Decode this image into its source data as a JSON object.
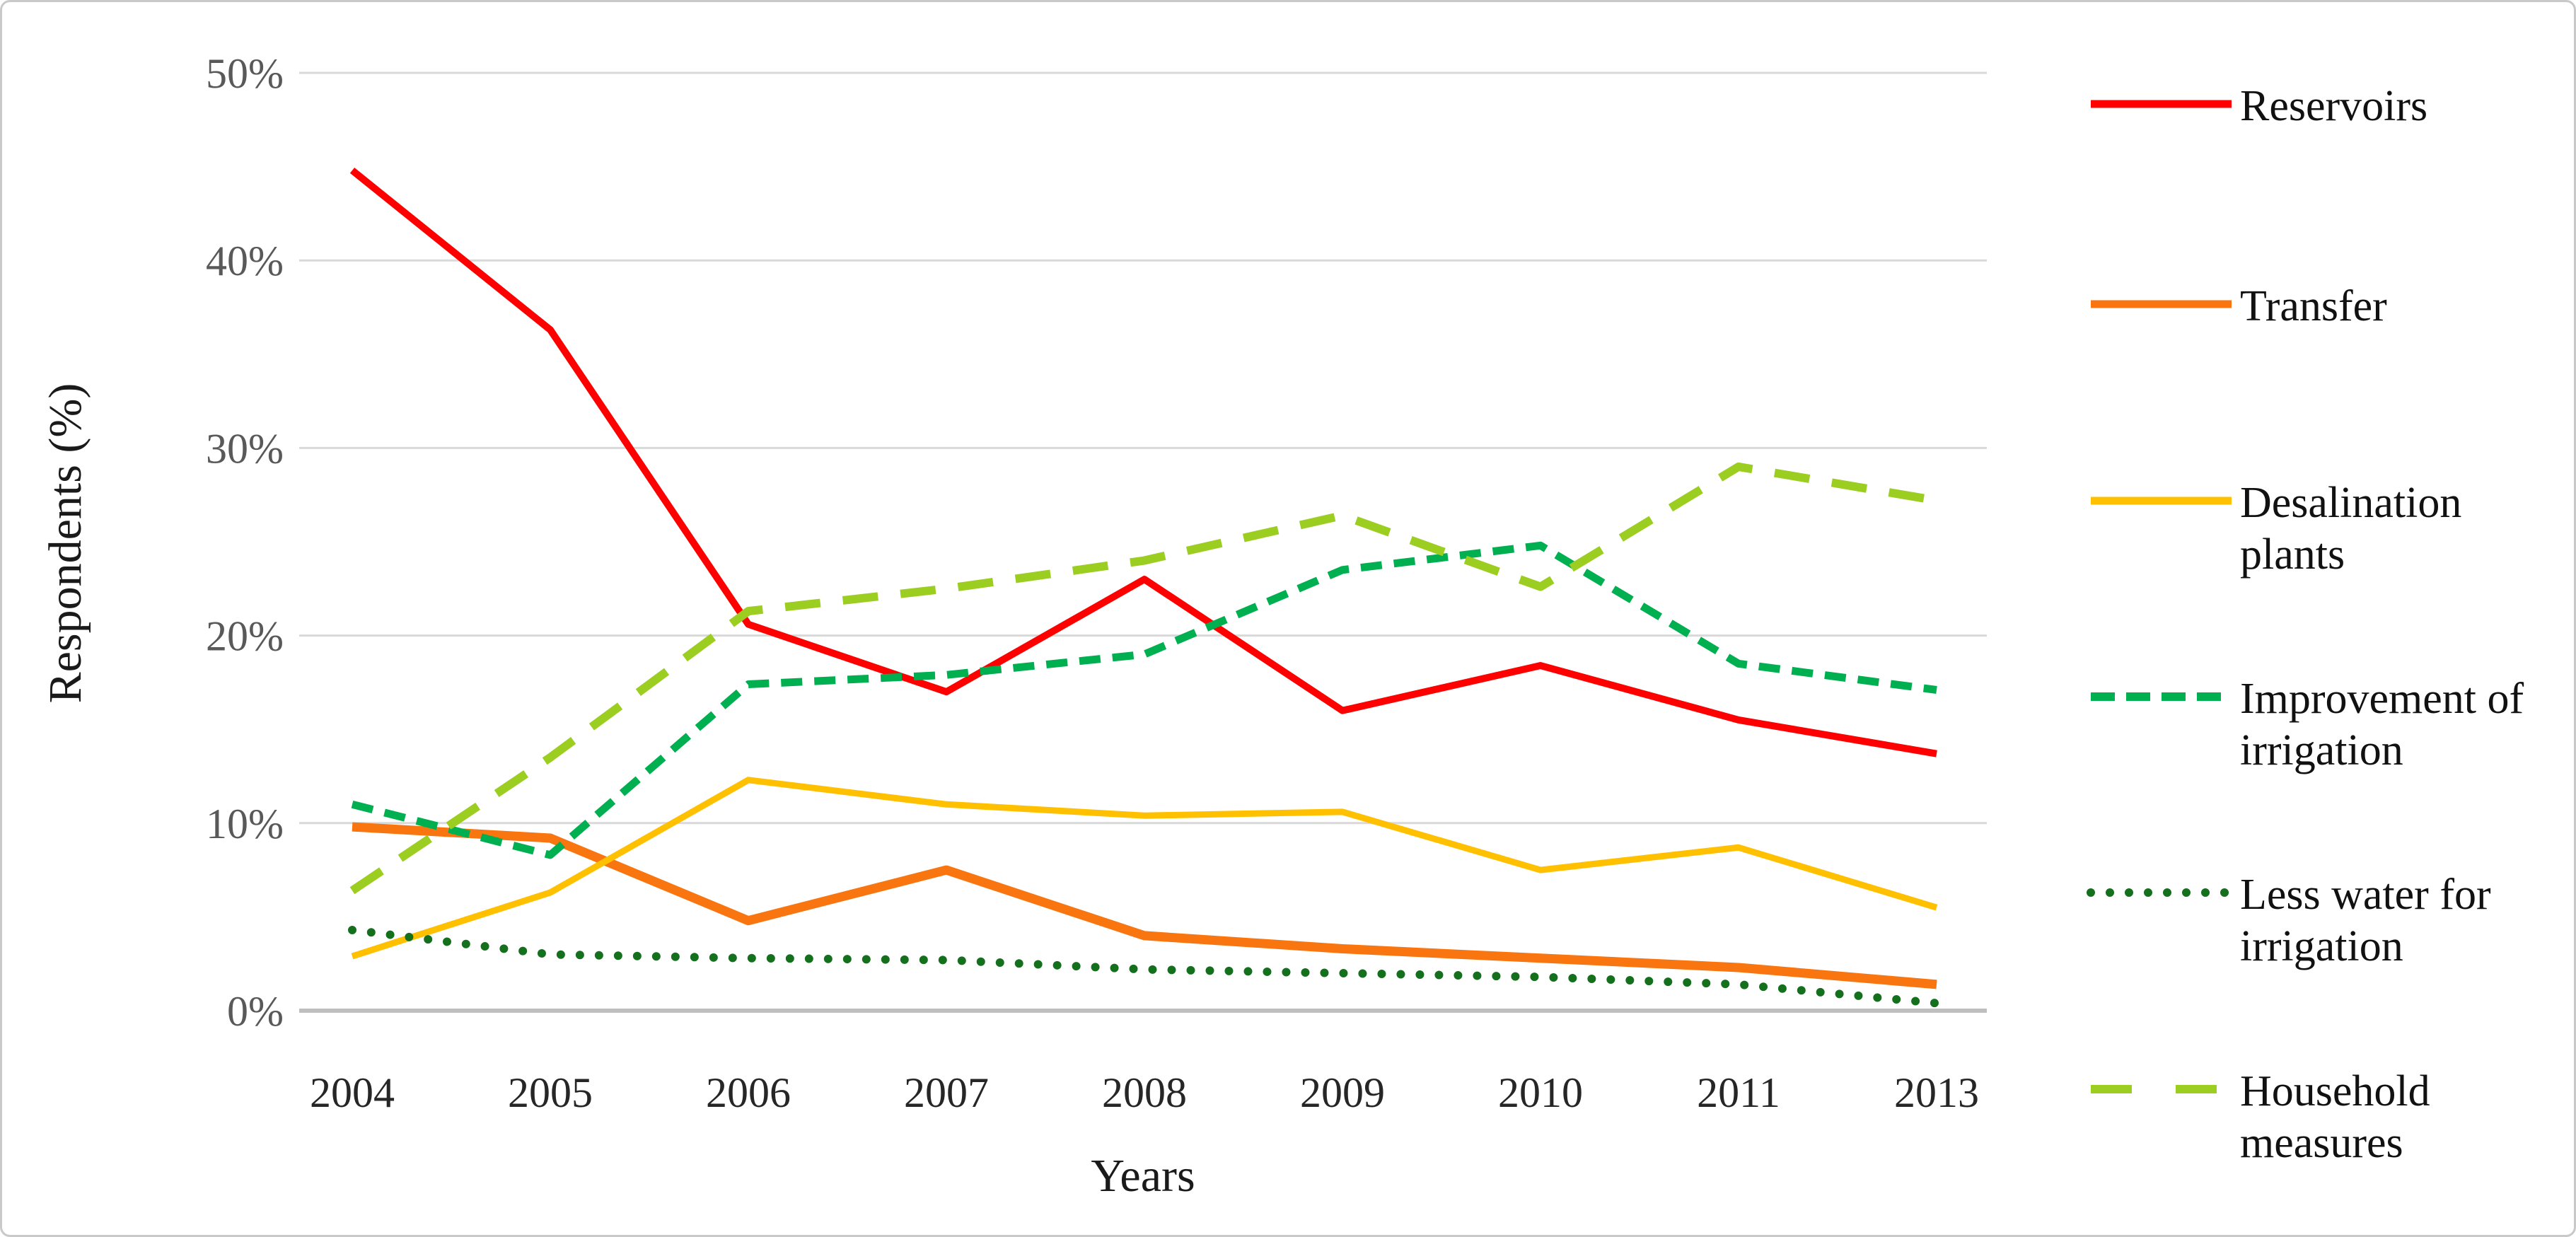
{
  "figure": {
    "background": "#ffffff",
    "border_color": "#c9c9c9"
  },
  "chart_data": {
    "type": "line",
    "title": "",
    "xlabel": "Years",
    "ylabel": "Respondents (%)",
    "ylim": [
      0,
      50
    ],
    "grid": "horizontal",
    "grid_color": "#d9d9d9",
    "axis_line_color": "#bfbfbf",
    "ytick_label_color": "#595959",
    "xtick_label_color": "#262626",
    "legend_position": "right",
    "yticks": [
      {
        "value": 0,
        "label": "0%"
      },
      {
        "value": 10,
        "label": "10%"
      },
      {
        "value": 20,
        "label": "20%"
      },
      {
        "value": 30,
        "label": "30%"
      },
      {
        "value": 40,
        "label": "40%"
      },
      {
        "value": 50,
        "label": "50%"
      }
    ],
    "categories": [
      "2004",
      "2005",
      "2006",
      "2007",
      "2008",
      "2009",
      "2010",
      "2011",
      "2013"
    ],
    "series": [
      {
        "name": "Reservoirs",
        "color": "#fe0000",
        "style": "solid",
        "values": [
          44.8,
          36.3,
          20.6,
          17.0,
          23.0,
          16.0,
          18.4,
          15.5,
          13.7
        ]
      },
      {
        "name": "Transfer",
        "color": "#f97510",
        "style": "solid",
        "values": [
          9.8,
          9.2,
          4.8,
          7.5,
          4.0,
          3.3,
          2.8,
          2.3,
          1.4
        ]
      },
      {
        "name": "Desalination plants",
        "color": "#ffc000",
        "style": "solid",
        "values": [
          2.9,
          6.3,
          12.3,
          11.0,
          10.4,
          10.6,
          7.5,
          8.7,
          5.5
        ]
      },
      {
        "name": "Improvement of irrigation",
        "color": "#00b050",
        "style": "dashed",
        "values": [
          11.0,
          8.3,
          17.4,
          17.9,
          19.0,
          23.5,
          24.8,
          18.5,
          17.1
        ]
      },
      {
        "name": "Less water for irrigation",
        "color": "#15701e",
        "style": "dotted",
        "values": [
          4.3,
          3.0,
          2.8,
          2.7,
          2.2,
          2.0,
          1.8,
          1.4,
          0.4
        ]
      },
      {
        "name": "Household measures",
        "color": "#9bce21",
        "style": "longdash",
        "values": [
          6.4,
          13.5,
          21.3,
          22.5,
          24.0,
          26.4,
          22.6,
          29.0,
          27.2
        ]
      }
    ]
  }
}
